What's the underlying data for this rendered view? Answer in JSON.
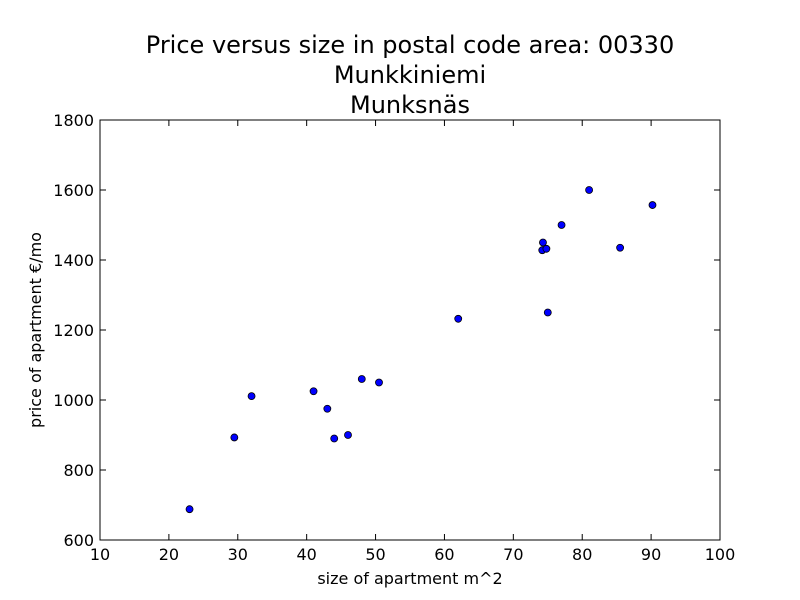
{
  "chart_data": {
    "type": "scatter",
    "title_lines": [
      "Price versus size in postal code area: 00330",
      "Munkkiniemi",
      "Munksnäs"
    ],
    "xlabel": "size of apartment m^2",
    "ylabel": "price of apartment €/mo",
    "xlim": [
      10,
      100
    ],
    "ylim": [
      600,
      1800
    ],
    "x_ticks": [
      10,
      20,
      30,
      40,
      50,
      60,
      70,
      80,
      90,
      100
    ],
    "y_ticks": [
      600,
      800,
      1000,
      1200,
      1400,
      1600,
      1800
    ],
    "grid": false,
    "marker_color": "#0000ff",
    "points": [
      {
        "x": 23,
        "y": 688
      },
      {
        "x": 29.5,
        "y": 893
      },
      {
        "x": 32,
        "y": 1011
      },
      {
        "x": 41,
        "y": 1025
      },
      {
        "x": 43,
        "y": 975
      },
      {
        "x": 44,
        "y": 890
      },
      {
        "x": 46,
        "y": 900
      },
      {
        "x": 48,
        "y": 1060
      },
      {
        "x": 50.5,
        "y": 1050
      },
      {
        "x": 62,
        "y": 1232
      },
      {
        "x": 74.3,
        "y": 1450
      },
      {
        "x": 74.2,
        "y": 1428
      },
      {
        "x": 74.8,
        "y": 1432
      },
      {
        "x": 75,
        "y": 1250
      },
      {
        "x": 77,
        "y": 1500
      },
      {
        "x": 81,
        "y": 1600
      },
      {
        "x": 85.5,
        "y": 1435
      },
      {
        "x": 90.2,
        "y": 1557
      }
    ]
  }
}
